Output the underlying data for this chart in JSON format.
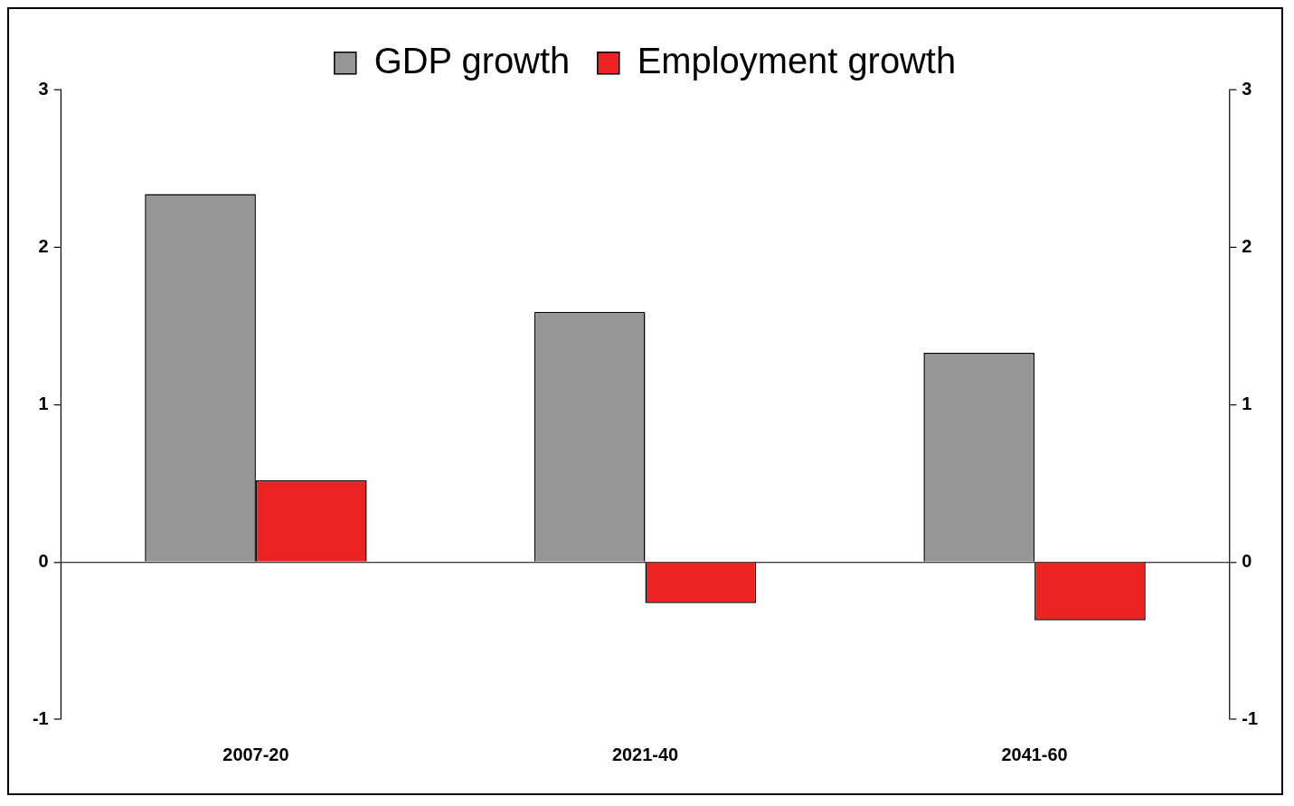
{
  "chart_data": {
    "type": "bar",
    "categories": [
      "2007-20",
      "2021-40",
      "2041-60"
    ],
    "series": [
      {
        "name": "GDP growth",
        "color": "#969696",
        "values": [
          2.34,
          1.59,
          1.33
        ]
      },
      {
        "name": "Employment growth",
        "color": "#ee2222",
        "values": [
          0.52,
          -0.26,
          -0.37
        ]
      }
    ],
    "ylim": [
      -1,
      3
    ],
    "yticks": [
      -1,
      0,
      1,
      2,
      3
    ],
    "y2lim": [
      -1,
      3
    ],
    "y2ticks": [
      -1,
      0,
      1,
      2,
      3
    ],
    "legend": "top"
  }
}
